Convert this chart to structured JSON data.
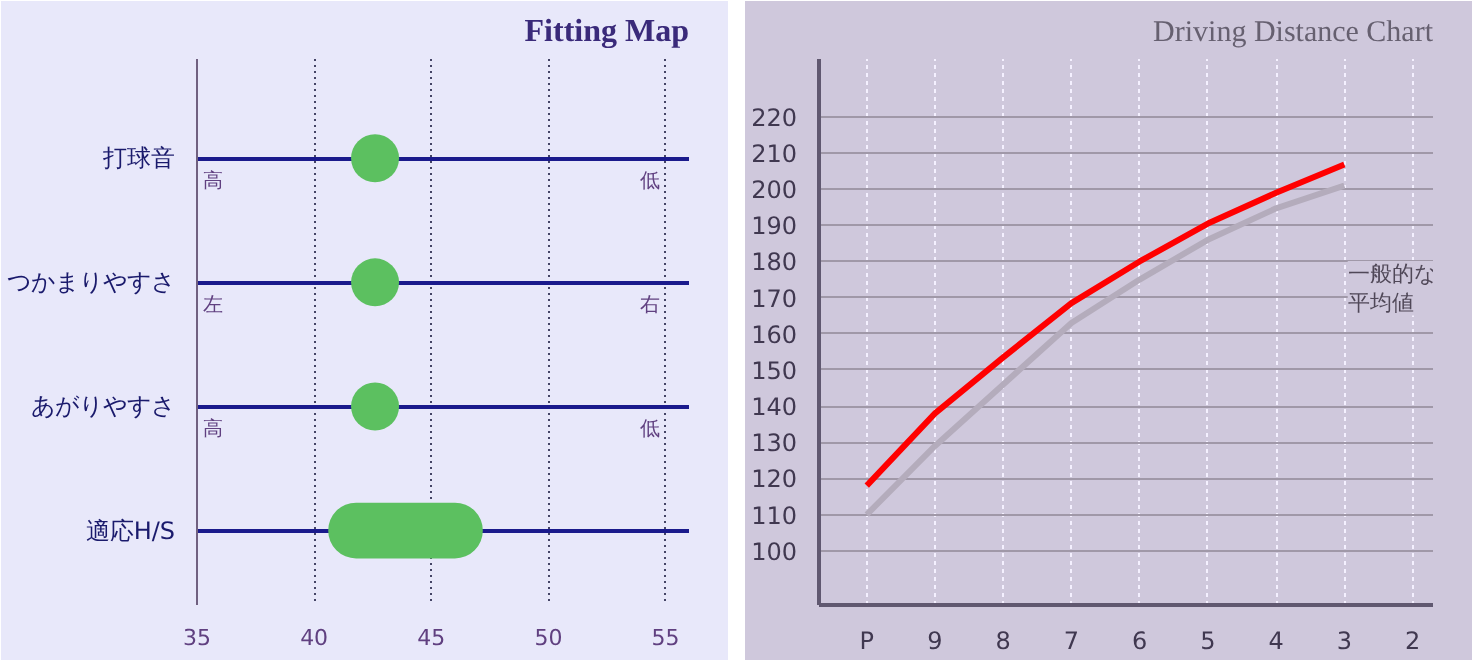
{
  "chart_data": [
    {
      "type": "scatter",
      "title": "Fitting Map",
      "orientation": "horizontal",
      "categories": [
        "打球音",
        "つかまりやすさ",
        "あがりやすさ",
        "適応H/S"
      ],
      "series": [
        {
          "type": "scatter",
          "color": "#5cc060",
          "values": [
            42.6,
            42.6,
            42.6,
            null
          ]
        },
        {
          "type": "bar",
          "color": "#5cc060",
          "values": [
            null,
            null,
            null,
            6.6
          ],
          "base": [
            null,
            null,
            null,
            40.6
          ]
        }
      ],
      "xlim": [
        35,
        56
      ],
      "xticks": [
        35,
        40,
        45,
        50,
        55
      ],
      "grid": true,
      "annotations": [
        "高",
        "低",
        "左",
        "右",
        "高",
        "低"
      ]
    },
    {
      "type": "line",
      "title": "Driving Distance Chart",
      "categories": [
        "P",
        "9",
        "8",
        "7",
        "6",
        "5",
        "4",
        "3",
        "2"
      ],
      "series": [
        {
          "color": "#b4acbc",
          "values": [
            110,
            129,
            146,
            163,
            175,
            186,
            194.7,
            201,
            null
          ]
        },
        {
          "color": "#ff0000",
          "values": [
            118,
            138,
            153.5,
            168.5,
            180,
            190.5,
            199,
            206.8,
            null
          ]
        }
      ],
      "ylim": [
        85,
        236
      ],
      "yticks": [
        100,
        110,
        120,
        130,
        140,
        150,
        160,
        170,
        180,
        190,
        200,
        210,
        220
      ],
      "grid": true,
      "marker": "none",
      "line_style": "solid",
      "annotations": [
        "一般的な平均値"
      ]
    }
  ]
}
